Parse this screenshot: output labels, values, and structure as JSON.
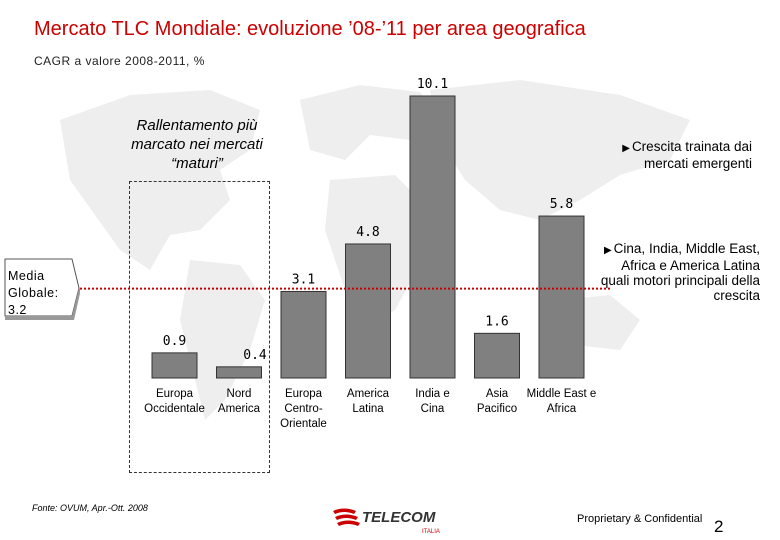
{
  "header": {
    "title": "Mercato TLC Mondiale: evoluzione ’08-’11 per area geografica",
    "subtitle": "CAGR a valore 2008-2011, %"
  },
  "chart_data": {
    "type": "bar",
    "categories": [
      [
        "Europa",
        "Occidentale"
      ],
      [
        "Nord",
        "America"
      ],
      [
        "Europa",
        "Centro-",
        "Orientale"
      ],
      [
        "America",
        "Latina"
      ],
      [
        "India e",
        "Cina"
      ],
      [
        "Asia",
        "Pacifico"
      ],
      [
        "Middle East e",
        "Africa"
      ]
    ],
    "values": [
      0.9,
      0.4,
      3.1,
      4.8,
      10.1,
      1.6,
      5.8
    ],
    "value_labels": [
      "0.9",
      "0.4",
      "3.1",
      "4.8",
      "10.1",
      "1.6",
      "5.8"
    ],
    "ylim": [
      0,
      10.1
    ],
    "reference_line": {
      "value": 3.2
    },
    "grid": false,
    "legend": "none",
    "bar_color": "#808080"
  },
  "annotations": {
    "callout": "Rallentamento più marcato nei mercati “maturi”",
    "notes": [
      "Crescita trainata dai mercati emergenti",
      "Cina, India, Middle East, Africa e America Latina quali motori principali della crescita"
    ],
    "media": [
      "Media",
      "Globale:",
      "3.2"
    ]
  },
  "footer": {
    "source": "Fonte: OVUM, Apr.-Ott. 2008",
    "logo_text": "TELECOM",
    "logo_sub": "ITALIA",
    "proprietary": "Proprietary  & Confidential",
    "page": "2"
  },
  "colors": {
    "title": "#cc0000",
    "reference_line": "#cc0000",
    "logo": "#cc0000"
  }
}
